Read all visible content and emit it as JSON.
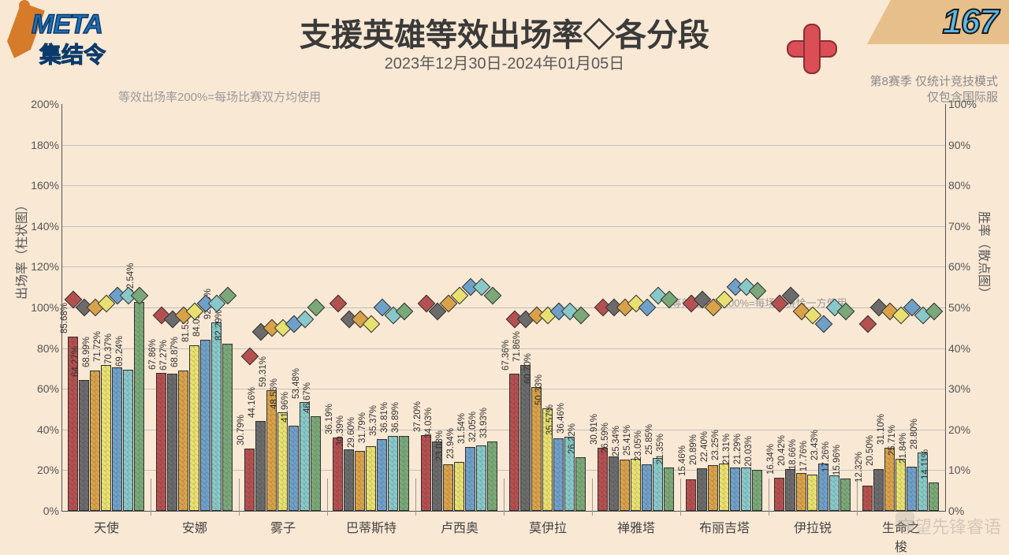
{
  "logo": {
    "line1": "META",
    "line2": "集结令"
  },
  "corner_number": "167",
  "title": "支援英雄等效出场率◇各分段",
  "subtitle": "2023年12月30日-2024年01月05日",
  "note_top_left": "等效出场率200%=每场比赛双方均使用",
  "note_top_right1": "第8赛季 仅统计竞技模式",
  "note_top_right2": "仅包含国际服",
  "note_mid": "等效出场率100%=每场比赛恰一方使用",
  "axis_left_label": "出场率（柱状图）",
  "axis_right_label": "胜率（散点图）",
  "watermark": "守望先锋睿语",
  "chart": {
    "type": "bar+scatter",
    "background": "#f9e8d4",
    "left_ylim": [
      0,
      200
    ],
    "left_step": 20,
    "right_ylim": [
      0,
      100
    ],
    "right_step": 10,
    "grid_color": "#c0c0c0",
    "bar_colors": [
      "#b55050",
      "#6b6b6b",
      "#d9a24a",
      "#e8e070",
      "#6fa0c8",
      "#88c8c8",
      "#7aa878"
    ],
    "heroes": [
      "天使",
      "安娜",
      "雾子",
      "巴蒂斯特",
      "卢西奥",
      "莫伊拉",
      "禅雅塔",
      "布丽吉塔",
      "伊拉锐",
      "生命之梭"
    ],
    "bars": [
      [
        85.68,
        64.27,
        68.99,
        71.72,
        70.37,
        69.24,
        102.54
      ],
      [
        67.86,
        67.27,
        68.87,
        81.53,
        84.09,
        92.7,
        82.29
      ],
      [
        30.79,
        44.16,
        59.31,
        48.56,
        41.96,
        53.48,
        46.67
      ],
      [
        36.19,
        30.39,
        29.6,
        31.79,
        35.37,
        36.81,
        36.89
      ],
      [
        37.2,
        34.03,
        23.03,
        23.94,
        31.54,
        32.05,
        33.93
      ],
      [
        67.36,
        71.86,
        60.7,
        50.33,
        35.57,
        36.46,
        26.22
      ],
      [
        30.91,
        26.59,
        25.34,
        25.41,
        23.05,
        25.85,
        21.35
      ],
      [
        15.46,
        20.89,
        22.4,
        23.25,
        21.31,
        21.29,
        20.03
      ],
      [
        16.34,
        20.42,
        18.66,
        17.76,
        23.43,
        17.26,
        15.96
      ],
      [
        12.32,
        20.5,
        31.1,
        25.71,
        21.84,
        28.8,
        14.11
      ]
    ],
    "diamonds": [
      [
        52,
        50,
        50,
        51,
        53,
        53,
        53
      ],
      [
        48,
        47,
        48,
        49,
        51,
        51,
        53
      ],
      [
        38,
        44,
        45,
        45,
        46,
        47,
        50
      ],
      [
        51,
        47,
        47,
        46,
        50,
        48,
        49
      ],
      [
        51,
        49,
        51,
        53,
        55,
        55,
        53
      ],
      [
        47,
        47,
        48,
        48,
        49,
        49,
        48
      ],
      [
        50,
        50,
        50,
        51,
        50,
        53,
        52
      ],
      [
        51,
        52,
        50,
        52,
        55,
        55,
        54
      ],
      [
        51,
        53,
        49,
        48,
        46,
        50,
        49
      ],
      [
        46,
        50,
        49,
        48,
        50,
        48,
        49
      ]
    ]
  }
}
